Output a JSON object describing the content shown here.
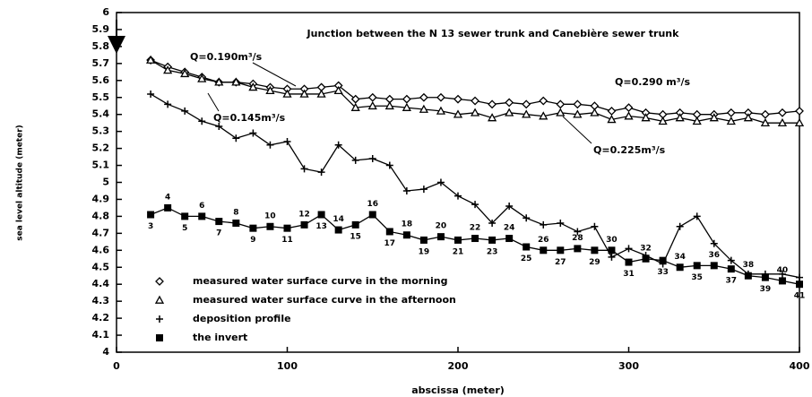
{
  "chart_data": {
    "type": "line",
    "xlabel": "abscissa (meter)",
    "ylabel": "sea level altitude (meter)",
    "xlim": [
      0,
      400
    ],
    "ylim": [
      4,
      6
    ],
    "xticks": [
      0,
      100,
      200,
      300,
      400
    ],
    "yticks": [
      4,
      4.1,
      4.2,
      4.3,
      4.4,
      4.5,
      4.6,
      4.7,
      4.8,
      4.9,
      5,
      5.1,
      5.2,
      5.3,
      5.4,
      5.5,
      5.6,
      5.7,
      5.8,
      5.9,
      6
    ],
    "x": [
      20,
      30,
      40,
      50,
      60,
      70,
      80,
      90,
      100,
      110,
      120,
      130,
      140,
      150,
      160,
      170,
      180,
      190,
      200,
      210,
      220,
      230,
      240,
      250,
      260,
      270,
      280,
      290,
      300,
      310,
      320,
      330,
      340,
      350,
      360,
      370,
      380,
      390,
      400
    ],
    "series": [
      {
        "name": "measured water surface curve in the morning",
        "marker": "diamond",
        "color": "#000000",
        "values": [
          5.72,
          5.68,
          5.65,
          5.62,
          5.59,
          5.59,
          5.58,
          5.56,
          5.55,
          5.55,
          5.56,
          5.57,
          5.49,
          5.5,
          5.49,
          5.49,
          5.5,
          5.5,
          5.49,
          5.48,
          5.46,
          5.47,
          5.46,
          5.48,
          5.46,
          5.46,
          5.45,
          5.42,
          5.44,
          5.41,
          5.4,
          5.41,
          5.4,
          5.4,
          5.41,
          5.41,
          5.4,
          5.41,
          5.42
        ]
      },
      {
        "name": "measured water surface curve in the afternoon",
        "marker": "triangle",
        "color": "#000000",
        "values": [
          5.72,
          5.66,
          5.64,
          5.61,
          5.59,
          5.59,
          5.56,
          5.54,
          5.52,
          5.52,
          5.52,
          5.54,
          5.44,
          5.45,
          5.45,
          5.44,
          5.43,
          5.42,
          5.4,
          5.41,
          5.38,
          5.41,
          5.4,
          5.39,
          5.41,
          5.4,
          5.41,
          5.37,
          5.39,
          5.38,
          5.36,
          5.38,
          5.36,
          5.38,
          5.36,
          5.38,
          5.35,
          5.35,
          5.35
        ]
      },
      {
        "name": "deposition profile",
        "marker": "plus",
        "color": "#000000",
        "values": [
          5.52,
          5.46,
          5.42,
          5.36,
          5.33,
          5.26,
          5.29,
          5.22,
          5.24,
          5.08,
          5.06,
          5.22,
          5.13,
          5.14,
          5.1,
          4.95,
          4.96,
          5.0,
          4.92,
          4.87,
          4.76,
          4.86,
          4.79,
          4.75,
          4.76,
          4.71,
          4.74,
          4.56,
          4.61,
          4.57,
          4.52,
          4.74,
          4.8,
          4.64,
          4.54,
          4.46,
          4.46,
          4.46,
          4.44
        ]
      },
      {
        "name": "the invert",
        "marker": "square",
        "color": "#000000",
        "values": [
          4.81,
          4.85,
          4.8,
          4.8,
          4.77,
          4.76,
          4.73,
          4.74,
          4.73,
          4.75,
          4.81,
          4.72,
          4.75,
          4.81,
          4.71,
          4.69,
          4.66,
          4.68,
          4.66,
          4.67,
          4.66,
          4.67,
          4.62,
          4.6,
          4.6,
          4.61,
          4.6,
          4.6,
          4.53,
          4.55,
          4.54,
          4.5,
          4.51,
          4.51,
          4.49,
          4.45,
          4.44,
          4.42,
          4.4
        ],
        "point_labels": [
          3,
          4,
          5,
          6,
          7,
          8,
          9,
          10,
          11,
          12,
          13,
          14,
          15,
          16,
          17,
          18,
          19,
          20,
          21,
          22,
          23,
          24,
          25,
          26,
          27,
          28,
          29,
          30,
          31,
          32,
          33,
          34,
          35,
          36,
          37,
          38,
          39,
          40,
          41
        ]
      }
    ],
    "annotations": [
      "Junction between the N 13 sewer trunk and Canebière sewer trunk",
      "Q=0.190m³/s",
      "Q=0.145m³/s",
      "Q=0.290 m³/s",
      "Q=0.225m³/s"
    ],
    "legend": "lower left",
    "grid": false
  }
}
